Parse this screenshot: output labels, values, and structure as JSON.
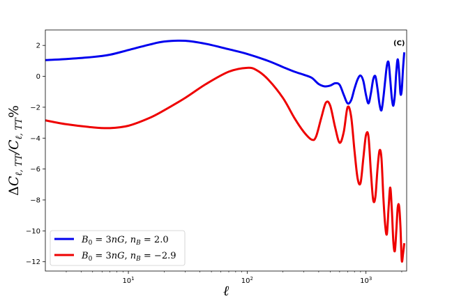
{
  "chart_data": {
    "type": "line",
    "xscale": "log",
    "xlim": [
      2,
      2200
    ],
    "ylim": [
      -12.6,
      3.0
    ],
    "xlabel": "ℓ",
    "ylabel": "ΔC_{ℓ,TT}/C_{ℓ,TT}%",
    "annotation": "(C)",
    "grid": false,
    "legend_position": "lower-left",
    "x_ticks": [
      {
        "value": 10,
        "base": "10",
        "exp": "1"
      },
      {
        "value": 100,
        "base": "10",
        "exp": "2"
      },
      {
        "value": 1000,
        "base": "10",
        "exp": "3"
      }
    ],
    "y_ticks": [
      2,
      0,
      -2,
      -4,
      -6,
      -8,
      -10,
      -12
    ],
    "series": [
      {
        "name": "B0 = 3nG, nB = 2.0",
        "legend_parts": [
          "B",
          "0",
          " = 3",
          "nG",
          ", ",
          "n",
          "B",
          " = 2.0"
        ],
        "color": "#0000ee",
        "x": [
          2,
          3,
          5,
          7,
          10,
          15,
          20,
          30,
          45,
          70,
          100,
          150,
          200,
          250,
          300,
          350,
          400,
          450,
          500,
          550,
          600,
          650,
          700,
          750,
          800,
          850,
          900,
          950,
          1000,
          1050,
          1100,
          1150,
          1200,
          1250,
          1300,
          1350,
          1400,
          1450,
          1500,
          1550,
          1600,
          1650,
          1700,
          1750,
          1800,
          1850,
          1900,
          1950,
          2000,
          2050,
          2100
        ],
        "y": [
          1.05,
          1.12,
          1.25,
          1.4,
          1.7,
          2.05,
          2.25,
          2.3,
          2.1,
          1.75,
          1.45,
          1.0,
          0.6,
          0.3,
          0.1,
          -0.1,
          -0.5,
          -0.65,
          -0.6,
          -0.45,
          -0.55,
          -1.2,
          -1.75,
          -1.55,
          -0.8,
          -0.2,
          0.05,
          -0.3,
          -1.2,
          -1.75,
          -1.1,
          -0.2,
          0.0,
          -0.8,
          -1.8,
          -2.2,
          -1.4,
          -0.3,
          0.7,
          0.9,
          -0.2,
          -1.4,
          -1.9,
          -1.2,
          0.3,
          1.1,
          0.3,
          -1.1,
          -0.9,
          0.5,
          1.55
        ]
      },
      {
        "name": "B0 = 3nG, nB = −2.9",
        "legend_parts": [
          "B",
          "0",
          " = 3",
          "nG",
          ", ",
          "n",
          "B",
          " = −2.9"
        ],
        "color": "#ee0000",
        "x": [
          2,
          3,
          5,
          7,
          10,
          15,
          20,
          30,
          45,
          70,
          100,
          120,
          150,
          200,
          250,
          300,
          350,
          380,
          420,
          460,
          500,
          550,
          600,
          650,
          700,
          750,
          800,
          850,
          900,
          950,
          1000,
          1050,
          1100,
          1150,
          1200,
          1250,
          1300,
          1350,
          1400,
          1450,
          1500,
          1550,
          1600,
          1650,
          1700,
          1750,
          1800,
          1850,
          1900,
          1950,
          2000,
          2050,
          2100
        ],
        "y": [
          -2.85,
          -3.1,
          -3.3,
          -3.35,
          -3.2,
          -2.7,
          -2.2,
          -1.4,
          -0.5,
          0.3,
          0.55,
          0.4,
          -0.2,
          -1.4,
          -2.7,
          -3.6,
          -4.1,
          -3.9,
          -2.7,
          -1.7,
          -1.9,
          -3.3,
          -4.3,
          -3.6,
          -2.0,
          -2.6,
          -4.8,
          -6.6,
          -6.9,
          -5.3,
          -3.8,
          -3.9,
          -6.2,
          -8.0,
          -7.8,
          -6.0,
          -4.8,
          -5.3,
          -7.8,
          -9.6,
          -10.2,
          -8.5,
          -7.2,
          -8.6,
          -10.7,
          -11.3,
          -10.0,
          -8.5,
          -8.4,
          -9.7,
          -11.9,
          -11.5,
          -10.8
        ]
      }
    ]
  }
}
